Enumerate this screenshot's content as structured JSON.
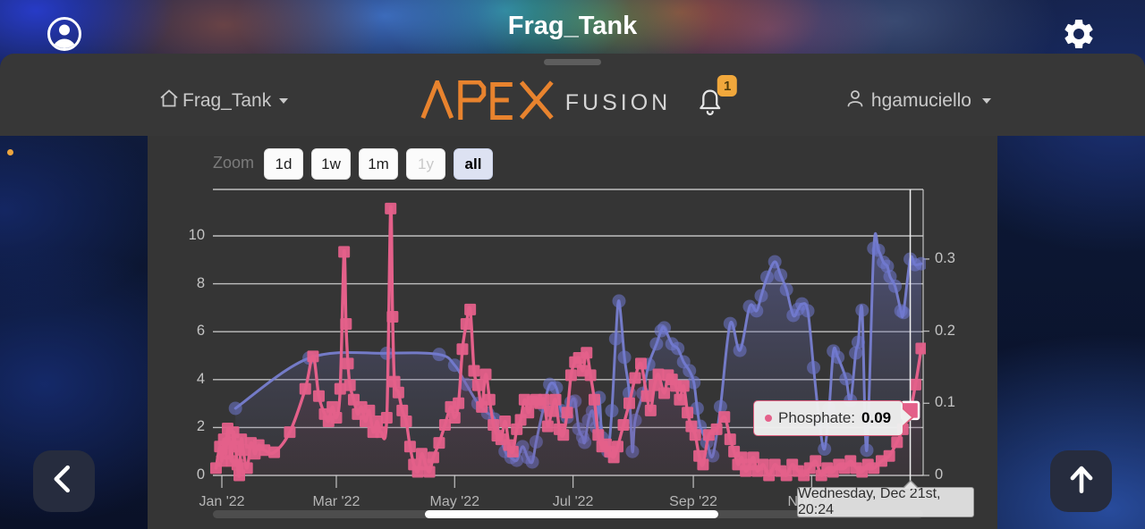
{
  "status_bar": {
    "title": "Frag_Tank"
  },
  "nav_bar": {
    "tank_label": "Frag_Tank",
    "logo_apex": "APEX",
    "logo_fusion": "FUSION",
    "notification_count": "1",
    "username": "hgamuciello"
  },
  "zoom_controls": {
    "label": "Zoom",
    "buttons": [
      {
        "label": "1d",
        "state": "normal"
      },
      {
        "label": "1w",
        "state": "normal"
      },
      {
        "label": "1m",
        "state": "normal"
      },
      {
        "label": "1y",
        "state": "disabled"
      },
      {
        "label": "all",
        "state": "selected"
      }
    ]
  },
  "tooltip": {
    "bullet": "dot",
    "label": "Phosphate:",
    "value": "0.09"
  },
  "date_tooltip": {
    "text": "Wednesday, Dec 21st, 20:24"
  },
  "colors": {
    "phosphate_pink": "#e4608a",
    "secondary_purple": "#6e76cd",
    "accent_orange": "#e8832e",
    "badge_orange": "#f1a83c",
    "grid": "#cfcfcf"
  },
  "chart_data": {
    "type": "line",
    "title": "",
    "grid": true,
    "legend": "none",
    "x_axis": {
      "labels": [
        "Jan '22",
        "May '22",
        "Mar '22",
        "Jul '22",
        "Sep '22",
        "Nov '22"
      ],
      "ordered_labels": [
        "Jan '22",
        "Mar '22",
        "May '22",
        "Jul '22",
        "Sep '22",
        "Nov '22"
      ],
      "label_days": [
        0,
        59,
        120,
        181,
        243,
        304
      ]
    },
    "left_axis": {
      "ticks": [
        0,
        2,
        4,
        6,
        8,
        10
      ],
      "range": [
        0,
        11.9
      ]
    },
    "right_axis": {
      "ticks": [
        0,
        0.1,
        0.2,
        0.3
      ],
      "range": [
        0,
        0.397
      ]
    },
    "series": [
      {
        "name": "(unlabeled)",
        "axis": "left",
        "marker": "circle",
        "color": "#6e76cd",
        "points": [
          [
            7,
            2.8
          ],
          [
            45,
            4.9
          ],
          [
            85,
            5.1
          ],
          [
            112,
            5.05
          ],
          [
            120,
            4.6
          ],
          [
            126,
            3.8
          ],
          [
            132,
            3.0
          ],
          [
            137,
            2.6
          ],
          [
            140.6,
            2.35
          ],
          [
            146,
            1.0
          ],
          [
            149,
            0.75
          ],
          [
            152,
            0.63
          ],
          [
            155,
            1.2
          ],
          [
            157.6,
            0.75
          ],
          [
            160,
            0.56
          ],
          [
            162,
            1.4
          ],
          [
            166,
            2.9
          ],
          [
            169,
            3.8
          ],
          [
            172.4,
            3.66
          ],
          [
            175,
            2.7
          ],
          [
            178,
            2.43
          ],
          [
            180,
            3.06
          ],
          [
            182,
            3.1
          ],
          [
            184,
            1.94
          ],
          [
            186,
            1.6
          ],
          [
            187,
            1.38
          ],
          [
            189,
            2.31
          ],
          [
            191,
            2.69
          ],
          [
            193,
            2.0
          ],
          [
            194.5,
            3.25
          ],
          [
            196,
            1.57
          ],
          [
            199,
            1.0
          ],
          [
            201,
            2.7
          ],
          [
            203,
            5.7
          ],
          [
            204.7,
            7.28
          ],
          [
            207.5,
            4.93
          ],
          [
            210,
            3.43
          ],
          [
            211.6,
            1.0
          ],
          [
            213,
            2.3
          ],
          [
            217,
            3.43
          ],
          [
            220,
            4.63
          ],
          [
            224,
            5.49
          ],
          [
            226.4,
            6.04
          ],
          [
            228,
            6.16
          ],
          [
            232,
            5.49
          ],
          [
            235,
            5.3
          ],
          [
            238,
            4.74
          ],
          [
            241,
            4.37
          ],
          [
            243.3,
            3.88
          ],
          [
            245,
            2.8
          ],
          [
            246.5,
            2.05
          ],
          [
            250,
            1.38
          ],
          [
            253,
            0.82
          ],
          [
            257,
            2.87
          ],
          [
            262,
            6.34
          ],
          [
            267,
            5.22
          ],
          [
            272,
            7.05
          ],
          [
            275.6,
            6.87
          ],
          [
            278,
            7.5
          ],
          [
            281,
            8.28
          ],
          [
            285,
            8.92
          ],
          [
            288,
            8.36
          ],
          [
            291,
            7.76
          ],
          [
            294.5,
            6.68
          ],
          [
            297,
            6.94
          ],
          [
            299,
            7.16
          ],
          [
            302,
            6.87
          ],
          [
            305,
            4.5
          ],
          [
            308,
            2.2
          ],
          [
            310.6,
            1.1
          ],
          [
            313,
            2.8
          ],
          [
            315.2,
            5.19
          ],
          [
            317.5,
            4.93
          ],
          [
            321.7,
            4.03
          ],
          [
            324,
            3.13
          ],
          [
            326.7,
            5.11
          ],
          [
            328,
            5.56
          ],
          [
            330,
            6.9
          ],
          [
            332.4,
            1.05
          ],
          [
            336,
            9.48
          ],
          [
            338.4,
            9.4
          ],
          [
            341,
            8.9
          ],
          [
            343,
            8.73
          ],
          [
            344.4,
            8.3
          ],
          [
            347,
            7.9
          ],
          [
            350,
            6.87
          ],
          [
            351.3,
            6.8
          ],
          [
            354.8,
            9.03
          ],
          [
            357.3,
            8.8
          ],
          [
            360.5,
            8.84
          ]
        ]
      },
      {
        "name": "Phosphate",
        "axis": "right",
        "marker": "square",
        "color": "#e4608a",
        "points": [
          [
            -3,
            0.01
          ],
          [
            -1,
            0.04
          ],
          [
            0,
            0.02
          ],
          [
            1,
            0.05
          ],
          [
            2,
            0.03
          ],
          [
            3,
            0.065
          ],
          [
            4,
            0.045
          ],
          [
            5,
            0.02
          ],
          [
            6,
            0.06
          ],
          [
            7,
            0.04
          ],
          [
            8,
            0.015
          ],
          [
            9,
            0
          ],
          [
            10,
            0.05
          ],
          [
            11,
            0.035
          ],
          [
            13,
            0.01
          ],
          [
            15,
            0.045
          ],
          [
            17,
            0.03
          ],
          [
            19,
            0.042
          ],
          [
            22,
            0.035
          ],
          [
            27,
            0.032
          ],
          [
            35,
            0.06
          ],
          [
            43,
            0.12
          ],
          [
            47,
            0.165
          ],
          [
            50,
            0.11
          ],
          [
            53,
            0.085
          ],
          [
            55,
            0.075
          ],
          [
            57,
            0.095
          ],
          [
            59,
            0.08
          ],
          [
            61,
            0.12
          ],
          [
            63,
            0.31
          ],
          [
            64,
            0.21
          ],
          [
            65,
            0.155
          ],
          [
            66,
            0.125
          ],
          [
            68,
            0.105
          ],
          [
            70,
            0.085
          ],
          [
            72,
            0.095
          ],
          [
            74,
            0.075
          ],
          [
            76,
            0.09
          ],
          [
            78,
            0.06
          ],
          [
            80,
            0.075
          ],
          [
            82,
            0.06
          ],
          [
            85,
            0.08
          ],
          [
            87,
            0.37
          ],
          [
            88,
            0.22
          ],
          [
            89,
            0.13
          ],
          [
            91,
            0.115
          ],
          [
            93,
            0.09
          ],
          [
            95,
            0.075
          ],
          [
            97,
            0.04
          ],
          [
            99,
            0.015
          ],
          [
            101,
            0.005
          ],
          [
            103,
            0.03
          ],
          [
            105,
            0.015
          ],
          [
            107,
            0.005
          ],
          [
            109,
            0.025
          ],
          [
            112,
            0.045
          ],
          [
            115,
            0.07
          ],
          [
            118,
            0.095
          ],
          [
            120,
            0.08
          ],
          [
            122,
            0.1
          ],
          [
            124,
            0.175
          ],
          [
            126,
            0.21
          ],
          [
            128,
            0.23
          ],
          [
            130,
            0.145
          ],
          [
            132,
            0.125
          ],
          [
            134,
            0.095
          ],
          [
            136,
            0.14
          ],
          [
            138,
            0.105
          ],
          [
            140,
            0.07
          ],
          [
            142,
            0.055
          ],
          [
            144,
            0.05
          ],
          [
            146,
            0.075
          ],
          [
            148,
            0.042
          ],
          [
            150,
            0.033
          ],
          [
            152,
            0.064
          ],
          [
            154,
            0.077
          ],
          [
            156,
            0.105
          ],
          [
            158,
            0.087
          ],
          [
            160,
            0.102
          ],
          [
            162,
            0.105
          ],
          [
            164,
            0.1
          ],
          [
            166,
            0.105
          ],
          [
            168,
            0.068
          ],
          [
            170,
            0.089
          ],
          [
            172,
            0.105
          ],
          [
            174,
            0.064
          ],
          [
            176,
            0.056
          ],
          [
            178,
            0.087
          ],
          [
            180,
            0.139
          ],
          [
            182,
            0.157
          ],
          [
            184,
            0.163
          ],
          [
            186,
            0.145
          ],
          [
            188,
            0.17
          ],
          [
            190,
            0.139
          ],
          [
            192,
            0.105
          ],
          [
            194,
            0.056
          ],
          [
            196,
            0.04
          ],
          [
            198,
            0.043
          ],
          [
            200,
            0.033
          ],
          [
            202,
            0.025
          ],
          [
            204,
            0.04
          ],
          [
            207,
            0.07
          ],
          [
            210,
            0.1
          ],
          [
            213,
            0.135
          ],
          [
            216,
            0.155
          ],
          [
            219,
            0.11
          ],
          [
            221,
            0.09
          ],
          [
            223,
            0.125
          ],
          [
            225,
            0.14
          ],
          [
            228,
            0.114
          ],
          [
            230,
            0.139
          ],
          [
            232,
            0.133
          ],
          [
            234,
            0.124
          ],
          [
            236,
            0.105
          ],
          [
            238,
            0.124
          ],
          [
            240,
            0.087
          ],
          [
            242,
            0.068
          ],
          [
            244,
            0.056
          ],
          [
            246,
            0.027
          ],
          [
            248,
            0.015
          ],
          [
            251,
            0.056
          ],
          [
            255,
            0.064
          ],
          [
            259,
            0.081
          ],
          [
            262,
            0.05
          ],
          [
            264,
            0.033
          ],
          [
            266,
            0.015
          ],
          [
            268,
            0.025
          ],
          [
            270,
            0.006
          ],
          [
            272,
            0.015
          ],
          [
            274,
            0.025
          ],
          [
            276,
            0.006
          ],
          [
            279,
            0.015
          ],
          [
            282,
            0
          ],
          [
            285,
            0.015
          ],
          [
            288,
            0.006
          ],
          [
            291,
            0
          ],
          [
            294,
            0.015
          ],
          [
            297,
            0.006
          ],
          [
            300,
            0
          ],
          [
            303,
            0.01
          ],
          [
            306,
            0.02
          ],
          [
            309,
            0
          ],
          [
            312,
            0.01
          ],
          [
            315,
            0.005
          ],
          [
            318,
            0.015
          ],
          [
            321,
            0.01
          ],
          [
            324,
            0.02
          ],
          [
            327,
            0.01
          ],
          [
            330,
            0.005
          ],
          [
            333,
            0.015
          ],
          [
            336,
            0.01
          ],
          [
            340,
            0.02
          ],
          [
            344,
            0.027
          ],
          [
            348,
            0.046
          ],
          [
            351,
            0.064
          ],
          [
            354.8,
            0.09
          ],
          [
            357.5,
            0.126
          ],
          [
            360.5,
            0.176
          ]
        ]
      }
    ],
    "highlight": {
      "series": "Phosphate",
      "day": 354.8,
      "value": 0.09
    }
  }
}
